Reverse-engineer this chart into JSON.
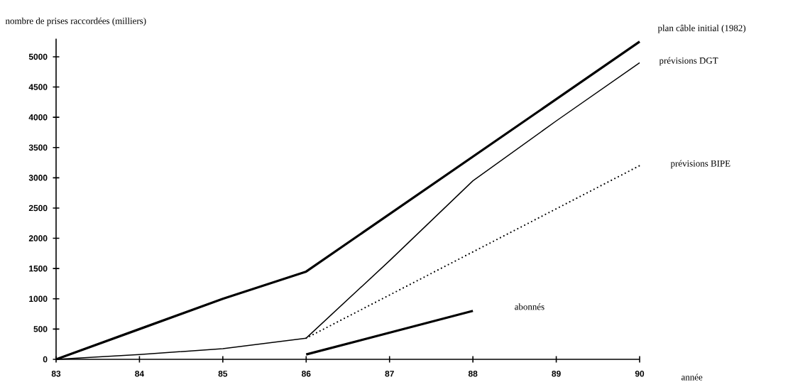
{
  "chart_data": {
    "type": "line",
    "xlabel": "année",
    "ylabel": "nombre de prises raccordées (milliers)",
    "xlim": [
      83,
      90
    ],
    "ylim": [
      0,
      5300
    ],
    "xticks": [
      83,
      84,
      85,
      86,
      87,
      88,
      89,
      90
    ],
    "yticks": [
      0,
      500,
      1000,
      1500,
      2000,
      2500,
      3000,
      3500,
      4000,
      4500,
      5000
    ],
    "grid": false,
    "legend": false,
    "marker": "none",
    "series": [
      {
        "name": "plan câble initial (1982)",
        "color": "#000000",
        "line_style": "solid",
        "x": [
          83,
          84,
          85,
          86,
          90
        ],
        "values": [
          0,
          500,
          1000,
          1450,
          5250
        ]
      },
      {
        "name": "prévisions DGT",
        "color": "#000000",
        "line_style": "solid",
        "x": [
          83,
          84,
          85,
          86,
          87,
          88,
          89,
          90
        ],
        "values": [
          0,
          80,
          175,
          350,
          1630,
          2950,
          3940,
          4900
        ]
      },
      {
        "name": "prévisions BIPE",
        "color": "#000000",
        "line_style": "dotted",
        "x": [
          86,
          90
        ],
        "values": [
          350,
          3200
        ]
      },
      {
        "name": "abonnés",
        "color": "#000000",
        "line_style": "solid",
        "x": [
          86,
          88
        ],
        "values": [
          80,
          800
        ]
      }
    ]
  }
}
